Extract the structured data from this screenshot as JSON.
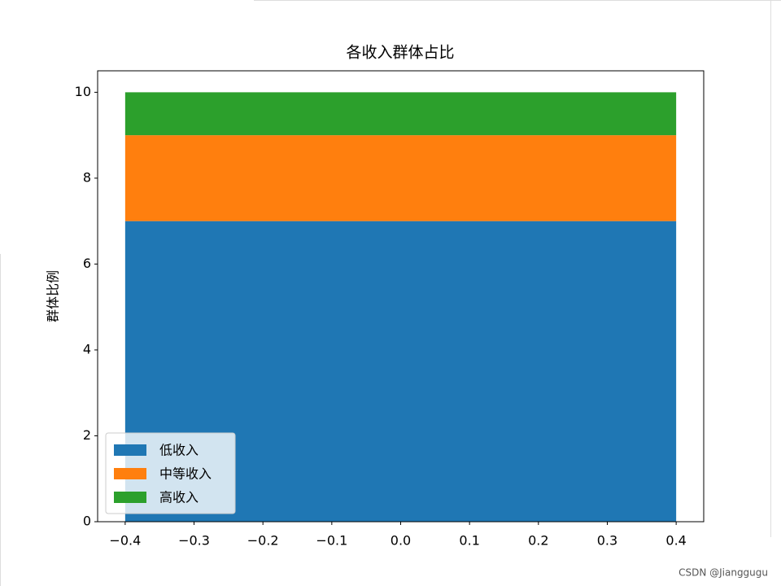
{
  "chart_data": {
    "type": "bar",
    "stacked": true,
    "title": "各收入群体占比",
    "ylabel": "群体比例",
    "x": [
      0
    ],
    "series": [
      {
        "name": "低收入",
        "color": "#1f77b4",
        "values": [
          7
        ]
      },
      {
        "name": "中等收入",
        "color": "#ff7f0e",
        "values": [
          2
        ]
      },
      {
        "name": "高收入",
        "color": "#2ca02c",
        "values": [
          1
        ]
      }
    ],
    "xlim": [
      -0.44,
      0.44
    ],
    "xticks": [
      {
        "value": -0.4,
        "label": "−0.4"
      },
      {
        "value": -0.3,
        "label": "−0.3"
      },
      {
        "value": -0.2,
        "label": "−0.2"
      },
      {
        "value": -0.1,
        "label": "−0.1"
      },
      {
        "value": 0,
        "label": "0.0"
      },
      0.1,
      0.2,
      0.3,
      0.4
    ],
    "ylim": [
      0,
      10.5
    ],
    "yticks": [
      0,
      2,
      4,
      6,
      8,
      10
    ],
    "grid": false,
    "legend": "lower left",
    "watermark": "CSDN @Jianggugu"
  }
}
